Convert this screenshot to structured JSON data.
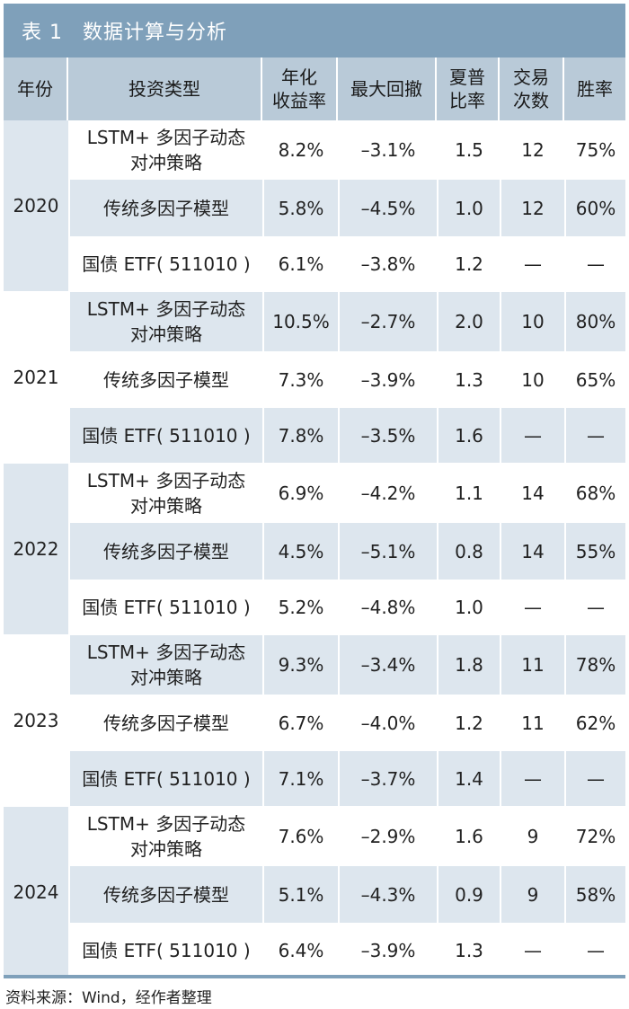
{
  "table": {
    "number": "表 1",
    "title": "数据计算与分析",
    "headers": [
      "年份",
      "投资类型",
      "年化\n收益率",
      "最大回撤",
      "夏普\n比率",
      "交易\n次数",
      "胜率"
    ],
    "groups": [
      {
        "year": "2020",
        "rows": [
          [
            "LSTM+ 多因子动态\n对冲策略",
            "8.2%",
            "–3.1%",
            "1.5",
            "12",
            "75%"
          ],
          [
            "传统多因子模型",
            "5.8%",
            "–4.5%",
            "1.0",
            "12",
            "60%"
          ],
          [
            "国债 ETF( 511010 )",
            "6.1%",
            "–3.8%",
            "1.2",
            "—",
            "—"
          ]
        ]
      },
      {
        "year": "2021",
        "rows": [
          [
            "LSTM+ 多因子动态\n对冲策略",
            "10.5%",
            "–2.7%",
            "2.0",
            "10",
            "80%"
          ],
          [
            "传统多因子模型",
            "7.3%",
            "–3.9%",
            "1.3",
            "10",
            "65%"
          ],
          [
            "国债 ETF( 511010 )",
            "7.8%",
            "–3.5%",
            "1.6",
            "—",
            "—"
          ]
        ]
      },
      {
        "year": "2022",
        "rows": [
          [
            "LSTM+ 多因子动态\n对冲策略",
            "6.9%",
            "–4.2%",
            "1.1",
            "14",
            "68%"
          ],
          [
            "传统多因子模型",
            "4.5%",
            "–5.1%",
            "0.8",
            "14",
            "55%"
          ],
          [
            "国债 ETF( 511010 )",
            "5.2%",
            "–4.8%",
            "1.0",
            "—",
            "—"
          ]
        ]
      },
      {
        "year": "2023",
        "rows": [
          [
            "LSTM+ 多因子动态\n对冲策略",
            "9.3%",
            "–3.4%",
            "1.8",
            "11",
            "78%"
          ],
          [
            "传统多因子模型",
            "6.7%",
            "–4.0%",
            "1.2",
            "11",
            "62%"
          ],
          [
            "国债 ETF( 511010 )",
            "7.1%",
            "–3.7%",
            "1.4",
            "—",
            "—"
          ]
        ]
      },
      {
        "year": "2024",
        "rows": [
          [
            "LSTM+ 多因子动态\n对冲策略",
            "7.6%",
            "–2.9%",
            "1.6",
            "9",
            "72%"
          ],
          [
            "传统多因子模型",
            "5.1%",
            "–4.3%",
            "0.9",
            "9",
            "58%"
          ],
          [
            "国债 ETF( 511010 )",
            "6.4%",
            "–3.9%",
            "1.3",
            "—",
            "—"
          ]
        ]
      }
    ]
  },
  "source": "资料来源：Wind，经作者整理"
}
